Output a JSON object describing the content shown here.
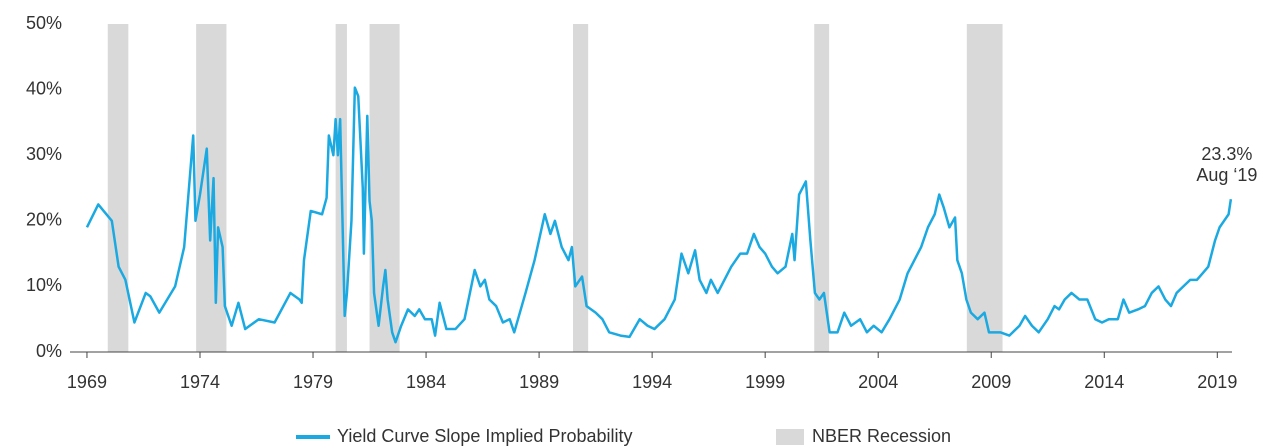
{
  "chart_data": {
    "type": "line",
    "xlim": [
      1968.25,
      2019.65
    ],
    "xticks": [
      1969,
      1974,
      1979,
      1984,
      1989,
      1994,
      1999,
      2004,
      2009,
      2014,
      2019
    ],
    "ylim": [
      0,
      50
    ],
    "yticks": [
      {
        "value": 0,
        "label": "0%"
      },
      {
        "value": 10,
        "label": "10%"
      },
      {
        "value": 20,
        "label": "20%"
      },
      {
        "value": 30,
        "label": "30%"
      },
      {
        "value": 40,
        "label": "40%"
      },
      {
        "value": 50,
        "label": "50%"
      }
    ],
    "grid": false,
    "legend": "bottom",
    "annotation": [
      "23.3%",
      "Aug ‘19"
    ],
    "recessions": {
      "name": "NBER Recession",
      "color": "#d9d9d9",
      "spans": [
        [
          1969.92,
          1970.83
        ],
        [
          1973.83,
          1975.17
        ],
        [
          1980.0,
          1980.5
        ],
        [
          1981.5,
          1982.83
        ],
        [
          1990.5,
          1991.17
        ],
        [
          2001.17,
          2001.83
        ],
        [
          2007.92,
          2009.5
        ]
      ]
    },
    "x": [
      1969.0,
      1969.5,
      1970.1,
      1970.4,
      1970.7,
      1971.1,
      1971.6,
      1971.8,
      1972.2,
      1972.9,
      1973.3,
      1973.7,
      1973.8,
      1974.0,
      1974.3,
      1974.45,
      1974.6,
      1974.7,
      1974.8,
      1975.0,
      1975.1,
      1975.4,
      1975.7,
      1976.0,
      1976.6,
      1977.3,
      1978.0,
      1978.4,
      1978.5,
      1978.6,
      1978.9,
      1979.4,
      1979.6,
      1979.7,
      1979.9,
      1980.0,
      1980.1,
      1980.2,
      1980.4,
      1980.5,
      1980.7,
      1980.85,
      1981.0,
      1981.2,
      1981.25,
      1981.4,
      1981.5,
      1981.6,
      1981.7,
      1981.9,
      1982.1,
      1982.2,
      1982.3,
      1982.5,
      1982.65,
      1982.9,
      1983.2,
      1983.5,
      1983.7,
      1983.95,
      1984.25,
      1984.4,
      1984.6,
      1984.9,
      1985.3,
      1985.7,
      1986.15,
      1986.4,
      1986.6,
      1986.8,
      1987.1,
      1987.4,
      1987.7,
      1987.9,
      1988.4,
      1988.8,
      1989.25,
      1989.5,
      1989.7,
      1990.0,
      1990.3,
      1990.45,
      1990.6,
      1990.9,
      1991.1,
      1991.5,
      1991.8,
      1992.1,
      1992.6,
      1993.0,
      1993.45,
      1993.8,
      1994.1,
      1994.55,
      1995.0,
      1995.3,
      1995.6,
      1995.9,
      1996.1,
      1996.4,
      1996.6,
      1996.9,
      1997.2,
      1997.5,
      1997.9,
      1998.2,
      1998.5,
      1998.75,
      1999.0,
      1999.3,
      1999.55,
      1999.9,
      2000.2,
      2000.3,
      2000.5,
      2000.8,
      2001.0,
      2001.2,
      2001.4,
      2001.6,
      2001.85,
      2002.2,
      2002.5,
      2002.8,
      2003.2,
      2003.5,
      2003.8,
      2004.15,
      2004.5,
      2004.95,
      2005.3,
      2005.6,
      2005.9,
      2006.2,
      2006.5,
      2006.7,
      2006.9,
      2007.15,
      2007.4,
      2007.5,
      2007.7,
      2007.9,
      2008.1,
      2008.4,
      2008.7,
      2008.9,
      2009.4,
      2009.8,
      2010.25,
      2010.5,
      2010.8,
      2011.1,
      2011.5,
      2011.8,
      2012.0,
      2012.25,
      2012.55,
      2012.9,
      2013.25,
      2013.6,
      2013.9,
      2014.2,
      2014.6,
      2014.85,
      2015.1,
      2015.5,
      2015.8,
      2016.1,
      2016.4,
      2016.7,
      2016.95,
      2017.2,
      2017.5,
      2017.8,
      2018.1,
      2018.35,
      2018.6,
      2018.9,
      2019.1,
      2019.3,
      2019.5,
      2019.6
    ],
    "series": [
      {
        "name": "Yield Curve Slope Implied Probability",
        "color": "#1ba9e1",
        "values": [
          19,
          22.5,
          20,
          13,
          11,
          4.5,
          9,
          8.5,
          6,
          10,
          16,
          33,
          20,
          24,
          31,
          17,
          26.5,
          7.5,
          19,
          16,
          7,
          4,
          7.5,
          3.5,
          5,
          4.5,
          9,
          8,
          7.5,
          14,
          21.5,
          21,
          23.5,
          33,
          30,
          35.5,
          30,
          35.5,
          5.5,
          9,
          20,
          40.3,
          39,
          25,
          15,
          36,
          23,
          20,
          9,
          4,
          10,
          12.5,
          8,
          3,
          1.5,
          4,
          6.5,
          5.5,
          6.5,
          5,
          5,
          2.5,
          7.5,
          3.5,
          3.5,
          5,
          12.5,
          10,
          11,
          8,
          7,
          4.5,
          5,
          3,
          9,
          14,
          21,
          18,
          20,
          16,
          14,
          16,
          10,
          11.5,
          7,
          6,
          5,
          3,
          2.5,
          2.3,
          5,
          4,
          3.5,
          5,
          8,
          15,
          12,
          15.5,
          11,
          9,
          11,
          9,
          11,
          13,
          15,
          15,
          18,
          16,
          15,
          13,
          12,
          13,
          18,
          14,
          24,
          26,
          17,
          9,
          8,
          9,
          3,
          3,
          6,
          4,
          5,
          3,
          4,
          3,
          5,
          8,
          12,
          14,
          16,
          19,
          21,
          24,
          22,
          19,
          20.5,
          14,
          12,
          8,
          6,
          5,
          6,
          3,
          3,
          2.5,
          4,
          5.5,
          4,
          3,
          5,
          7,
          6.5,
          8,
          9,
          8,
          8,
          5,
          4.5,
          5,
          5,
          8,
          6,
          6.5,
          7,
          9,
          10,
          8,
          7,
          9,
          10,
          11,
          11,
          12,
          13,
          17,
          19,
          20,
          21,
          23.3
        ]
      }
    ]
  }
}
